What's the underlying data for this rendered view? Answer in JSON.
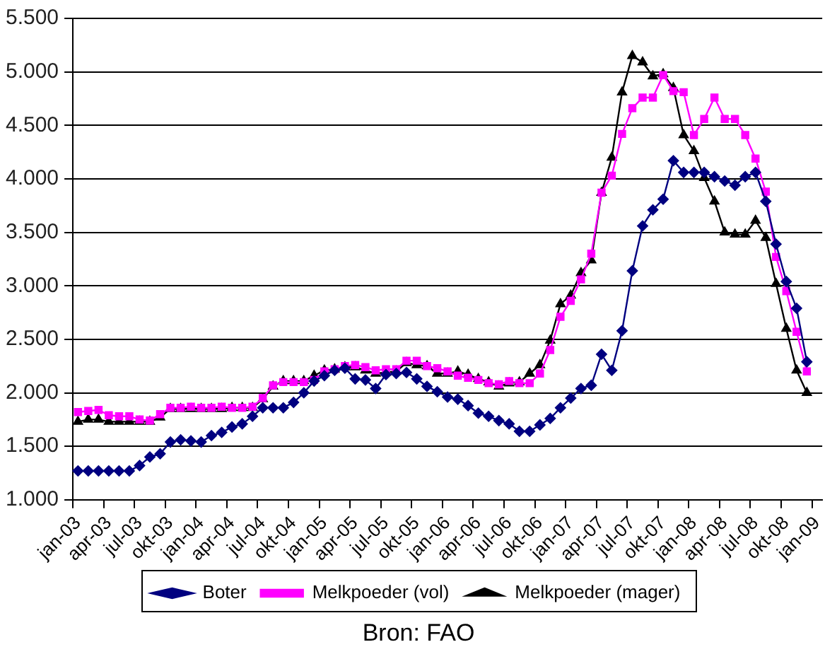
{
  "chart_data": {
    "type": "line",
    "categories": [
      "jan-03",
      null,
      null,
      "apr-03",
      null,
      null,
      "jul-03",
      null,
      null,
      "okt-03",
      null,
      null,
      "jan-04",
      null,
      null,
      "apr-04",
      null,
      null,
      "jul-04",
      null,
      null,
      "okt-04",
      null,
      null,
      "jan-05",
      null,
      null,
      "apr-05",
      null,
      null,
      "jul-05",
      null,
      null,
      "okt-05",
      null,
      null,
      "jan-06",
      null,
      null,
      "apr-06",
      null,
      null,
      "jul-06",
      null,
      null,
      "okt-06",
      null,
      null,
      "jan-07",
      null,
      null,
      "apr-07",
      null,
      null,
      "jul-07",
      null,
      null,
      "okt-07",
      null,
      null,
      "jan-08",
      null,
      null,
      "apr-08",
      null,
      null,
      "jul-08",
      null,
      null,
      "okt-08",
      null,
      null,
      "jan-09"
    ],
    "series": [
      {
        "name": "Boter",
        "color": "#000080",
        "marker": "diamond",
        "values": [
          1270,
          1270,
          1270,
          1270,
          1270,
          1270,
          1320,
          1400,
          1430,
          1540,
          1560,
          1550,
          1540,
          1600,
          1630,
          1680,
          1710,
          1780,
          1860,
          1860,
          1860,
          1910,
          2000,
          2110,
          2160,
          2210,
          2230,
          2130,
          2120,
          2040,
          2170,
          2180,
          2190,
          2130,
          2060,
          2010,
          1960,
          1940,
          1880,
          1810,
          1780,
          1740,
          1710,
          1640,
          1640,
          1700,
          1760,
          1860,
          1950,
          2040,
          2070,
          2360,
          2210,
          2580,
          3140,
          3560,
          3710,
          3810,
          4170,
          4060,
          4060,
          4060,
          4020,
          3980,
          3940,
          4020,
          4060,
          3790,
          3390,
          3040,
          2790,
          2290,
          null
        ]
      },
      {
        "name": "Melkpoeder (vol)",
        "color": "#ff00ff",
        "marker": "square",
        "values": [
          1820,
          1830,
          1840,
          1790,
          1780,
          1780,
          1750,
          1740,
          1800,
          1860,
          1860,
          1870,
          1860,
          1860,
          1870,
          1860,
          1860,
          1870,
          1950,
          2070,
          2100,
          2100,
          2100,
          2120,
          2200,
          2220,
          2250,
          2260,
          2240,
          2210,
          2220,
          2220,
          2300,
          2300,
          2250,
          2230,
          2200,
          2160,
          2140,
          2120,
          2090,
          2080,
          2110,
          2090,
          2090,
          2180,
          2400,
          2710,
          2860,
          3060,
          3300,
          3870,
          4030,
          4420,
          4660,
          4760,
          4760,
          4970,
          4820,
          4810,
          4410,
          4560,
          4760,
          4560,
          4560,
          4410,
          4190,
          3880,
          3270,
          2950,
          2570,
          2200,
          null
        ]
      },
      {
        "name": "Melkpoeder (mager)",
        "color": "#000000",
        "marker": "triangle",
        "values": [
          1730,
          1750,
          1750,
          1730,
          1730,
          1730,
          1730,
          1730,
          1770,
          1850,
          1850,
          1850,
          1850,
          1850,
          1850,
          1860,
          1860,
          1860,
          1940,
          2060,
          2110,
          2110,
          2110,
          2160,
          2210,
          2220,
          2240,
          2240,
          2210,
          2180,
          2190,
          2200,
          2280,
          2260,
          2250,
          2180,
          2180,
          2200,
          2170,
          2130,
          2100,
          2060,
          2090,
          2100,
          2180,
          2260,
          2490,
          2830,
          2910,
          3120,
          3240,
          3870,
          4200,
          4810,
          5150,
          5090,
          4960,
          4980,
          4850,
          4410,
          4260,
          4010,
          3790,
          3500,
          3480,
          3480,
          3610,
          3450,
          3020,
          2600,
          2210,
          2000,
          null
        ]
      }
    ],
    "ylim": [
      1000,
      5500
    ],
    "yticks": [
      {
        "value": 1000,
        "label": "1.000"
      },
      {
        "value": 1500,
        "label": "1.500"
      },
      {
        "value": 2000,
        "label": "2.000"
      },
      {
        "value": 2500,
        "label": "2.500"
      },
      {
        "value": 3000,
        "label": "3.000"
      },
      {
        "value": 3500,
        "label": "3.500"
      },
      {
        "value": 4000,
        "label": "4.000"
      },
      {
        "value": 4500,
        "label": "4.500"
      },
      {
        "value": 5000,
        "label": "5.000"
      },
      {
        "value": 5500,
        "label": "5.500"
      }
    ],
    "grid": "y",
    "legend": "bottom",
    "line_style": "solid",
    "annotations": [
      "Bron: FAO"
    ]
  }
}
